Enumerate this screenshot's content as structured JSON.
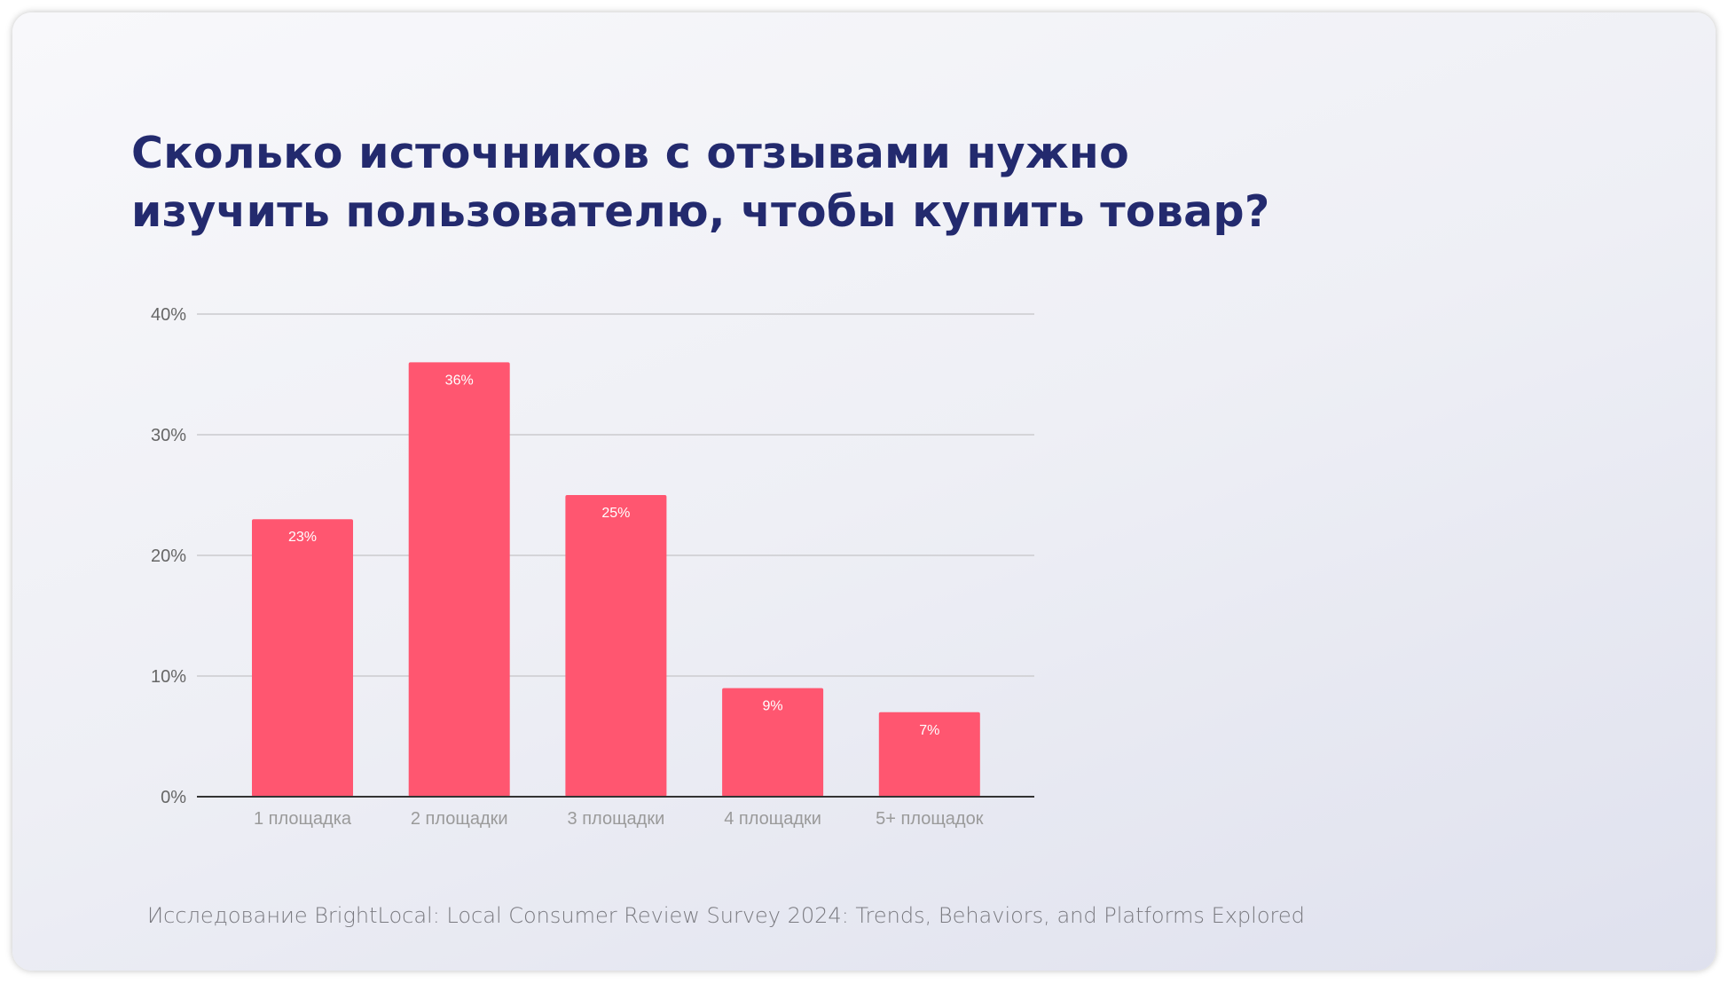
{
  "title_line1": "Сколько источников с отзывами нужно",
  "title_line2": "изучить пользователю, чтобы купить товар?",
  "footer": "Исследование BrightLocal: Local Consumer Review Survey 2024: Trends, Behaviors, and Platforms Explored",
  "colors": {
    "bar": "#FF5670",
    "title": "#232A6E"
  },
  "chart_data": {
    "type": "bar",
    "title": "Сколько источников с отзывами нужно изучить пользователю, чтобы купить товар?",
    "categories": [
      "1 площадка",
      "2 площадки",
      "3 площадки",
      "4 площадки",
      "5+ площадок"
    ],
    "values": [
      23,
      36,
      25,
      9,
      7
    ],
    "data_labels": [
      "23%",
      "36%",
      "25%",
      "9%",
      "7%"
    ],
    "yticks": [
      0,
      10,
      20,
      30,
      40
    ],
    "ytick_labels": [
      "0%",
      "10%",
      "20%",
      "30%",
      "40%"
    ],
    "ylim": [
      0,
      40
    ],
    "xlabel": "",
    "ylabel": "",
    "grid": true,
    "legend": "none"
  }
}
